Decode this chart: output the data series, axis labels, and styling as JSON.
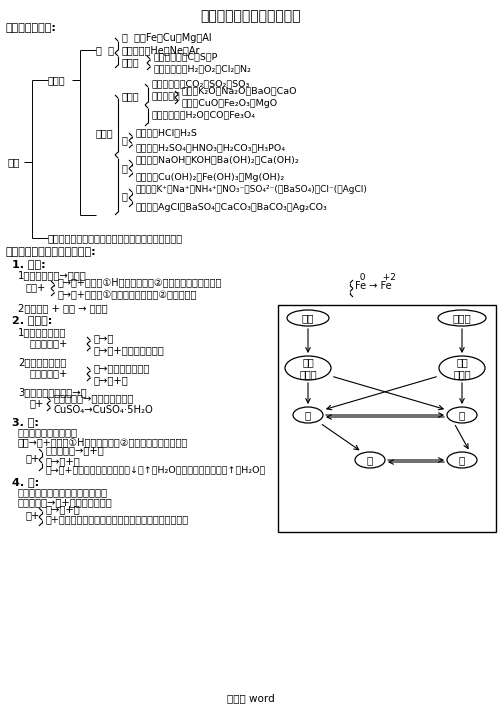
{
  "title": "初中化学酸碱盐知识点总结",
  "bg": "#ffffff",
  "footer": "编辑版 word",
  "s1": "一、物质的分类:",
  "s2": "二、各类物质的主要化学性质:"
}
